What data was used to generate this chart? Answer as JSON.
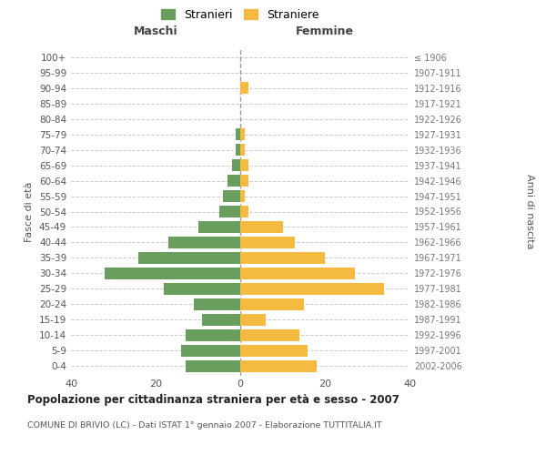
{
  "age_groups": [
    "0-4",
    "5-9",
    "10-14",
    "15-19",
    "20-24",
    "25-29",
    "30-34",
    "35-39",
    "40-44",
    "45-49",
    "50-54",
    "55-59",
    "60-64",
    "65-69",
    "70-74",
    "75-79",
    "80-84",
    "85-89",
    "90-94",
    "95-99",
    "100+"
  ],
  "birth_years": [
    "2002-2006",
    "1997-2001",
    "1992-1996",
    "1987-1991",
    "1982-1986",
    "1977-1981",
    "1972-1976",
    "1967-1971",
    "1962-1966",
    "1957-1961",
    "1952-1956",
    "1947-1951",
    "1942-1946",
    "1937-1941",
    "1932-1936",
    "1927-1931",
    "1922-1926",
    "1917-1921",
    "1912-1916",
    "1907-1911",
    "≤ 1906"
  ],
  "maschi": [
    13,
    14,
    13,
    9,
    11,
    18,
    32,
    24,
    17,
    10,
    5,
    4,
    3,
    2,
    1,
    1,
    0,
    0,
    0,
    0,
    0
  ],
  "femmine": [
    18,
    16,
    14,
    6,
    15,
    34,
    27,
    20,
    13,
    10,
    2,
    1,
    2,
    2,
    1,
    1,
    0,
    0,
    2,
    0,
    0
  ],
  "maschi_color": "#6a9e5e",
  "femmine_color": "#f5bb40",
  "background_color": "#ffffff",
  "grid_color": "#cccccc",
  "title": "Popolazione per cittadinanza straniera per età e sesso - 2007",
  "subtitle": "COMUNE DI BRIVIO (LC) - Dati ISTAT 1° gennaio 2007 - Elaborazione TUTTITALIA.IT",
  "ylabel_left": "Fasce di età",
  "ylabel_right": "Anni di nascita",
  "xlabel_left": "Maschi",
  "xlabel_right": "Femmine",
  "legend_stranieri": "Stranieri",
  "legend_straniere": "Straniere",
  "xlim": 40
}
